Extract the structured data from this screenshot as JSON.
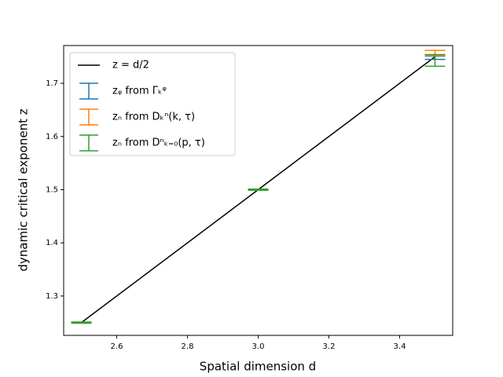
{
  "chart_data": {
    "type": "errorbar",
    "xlabel": "Spatial dimension d",
    "ylabel": "dynamic critical exponent z",
    "xlim": [
      2.45,
      3.55
    ],
    "ylim": [
      1.226,
      1.771
    ],
    "xticks": [
      2.6,
      2.8,
      {
        "value": 3,
        "label": "3.0"
      },
      3.2,
      3.4
    ],
    "yticks": [
      1.3,
      1.4,
      1.5,
      1.6,
      1.7
    ],
    "legend": "upper left",
    "series": [
      {
        "name": "z = d/2",
        "color": "#000000",
        "kind": "line",
        "x": [
          2.5,
          3,
          3.5
        ],
        "values": [
          1.25,
          1.5,
          1.75
        ]
      },
      {
        "name": "zᵩ from Γₖᵠ",
        "color": "#1f77b4",
        "kind": "errorbar",
        "x": [
          2.5,
          3,
          3.5
        ],
        "values": [
          1.25,
          1.5,
          1.748
        ],
        "errors": [
          0.001,
          0.001,
          0.003
        ]
      },
      {
        "name": "zₙ from Dₖⁿ(k, τ)",
        "color": "#ff7f0e",
        "kind": "errorbar",
        "x": [
          2.5,
          3,
          3.5
        ],
        "values": [
          1.25,
          1.5,
          1.757
        ],
        "errors": [
          0.001,
          0.001,
          0.005
        ]
      },
      {
        "name": "zₙ from Dⁿₖ₌₀(p, τ)",
        "color": "#2ca02c",
        "kind": "errorbar",
        "x": [
          2.5,
          3,
          3.5
        ],
        "values": [
          1.25,
          1.5,
          1.743
        ],
        "errors": [
          0.001,
          0.001,
          0.011
        ]
      }
    ]
  }
}
